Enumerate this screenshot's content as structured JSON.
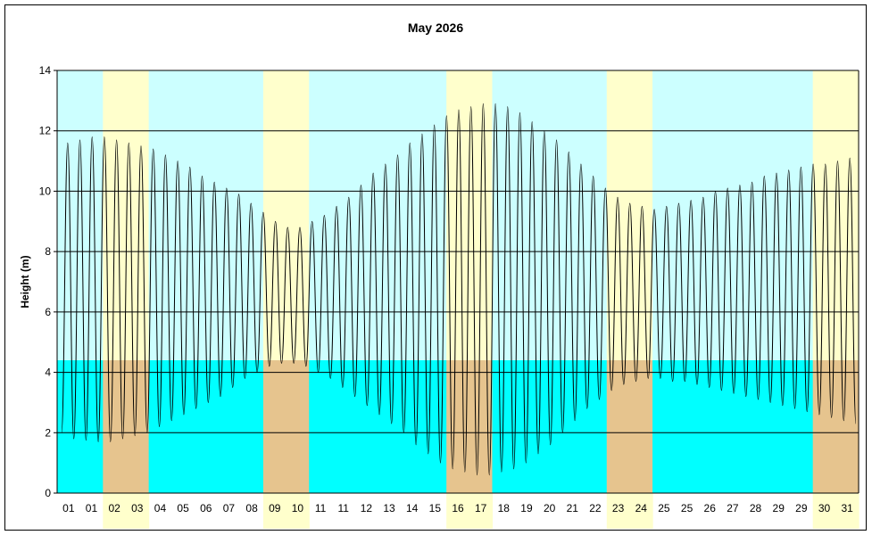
{
  "chart_data": {
    "type": "line",
    "title": "May 2026",
    "xlabel": "",
    "ylabel": "Height (m)",
    "ylim": [
      0,
      14
    ],
    "yticks": [
      0,
      2,
      4,
      6,
      8,
      10,
      12,
      14
    ],
    "grid": true,
    "legend": "none",
    "xlabels": [
      "01",
      "01",
      "02",
      "03",
      "04",
      "05",
      "06",
      "07",
      "08",
      "09",
      "10",
      "11",
      "11",
      "12",
      "13",
      "14",
      "15",
      "16",
      "17",
      "18",
      "19",
      "20",
      "21",
      "22",
      "23",
      "24",
      "25",
      "25",
      "26",
      "27",
      "28",
      "29",
      "29",
      "30",
      "31"
    ],
    "colors": {
      "day_top": "#ccffff",
      "day_bottom": "#00ffff",
      "weekend_top": "#ffffcc",
      "weekend_bottom": "#e6c48e",
      "line": "#000000"
    },
    "series": [
      {
        "values": [
          2.0,
          11.6,
          1.8,
          11.7,
          1.75,
          11.8,
          1.7,
          11.8,
          1.7,
          11.7,
          1.8,
          11.6,
          1.9,
          11.5,
          2.0,
          11.4,
          2.2,
          11.2,
          2.4,
          11.0,
          2.6,
          10.8,
          2.8,
          10.5,
          3.0,
          10.3,
          3.2,
          10.1,
          3.5,
          9.9,
          3.8,
          9.6,
          4.0,
          9.3,
          4.2,
          9.0,
          4.3,
          8.8,
          4.3,
          8.8,
          4.2,
          9.0,
          4.0,
          9.2,
          3.8,
          9.5,
          3.5,
          9.8,
          3.2,
          10.2,
          2.9,
          10.6,
          2.6,
          10.9,
          2.3,
          11.2,
          2.0,
          11.6,
          1.6,
          11.9,
          1.3,
          12.2,
          1.0,
          12.5,
          0.8,
          12.7,
          0.7,
          12.8,
          0.6,
          12.9,
          0.6,
          12.9,
          0.7,
          12.8,
          0.8,
          12.6,
          1.0,
          12.3,
          1.3,
          12.0,
          1.6,
          11.7,
          2.0,
          11.3,
          2.4,
          10.9,
          2.8,
          10.5,
          3.1,
          10.1,
          3.4,
          9.8,
          3.6,
          9.6,
          3.7,
          9.5,
          3.8,
          9.4,
          3.8,
          9.5,
          3.7,
          9.6,
          3.7,
          9.7,
          3.6,
          9.8,
          3.5,
          10.0,
          3.4,
          10.1,
          3.3,
          10.2,
          3.2,
          10.3,
          3.1,
          10.5,
          3.0,
          10.6,
          2.9,
          10.7,
          2.8,
          10.8,
          2.7,
          10.9,
          2.6,
          10.9,
          2.5,
          11.0,
          2.4,
          11.1,
          2.3
        ]
      }
    ]
  }
}
